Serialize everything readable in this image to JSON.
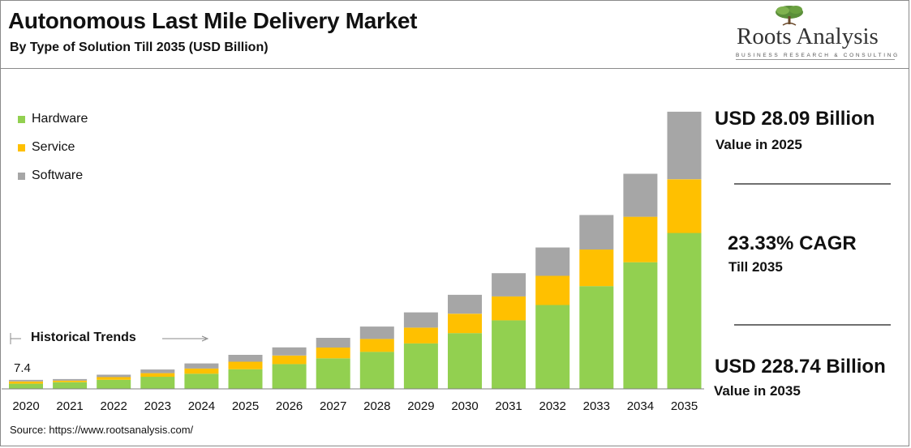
{
  "header": {
    "title": "Autonomous Last Mile Delivery Market",
    "subtitle": "By Type of Solution Till 2035 (USD Billion)"
  },
  "logo": {
    "name": "Roots Analysis",
    "tagline": "BUSINESS RESEARCH & CONSULTING",
    "icon": "tree-icon"
  },
  "annotations": {
    "historical_label": "Historical Trends",
    "first_value_label": "7.4"
  },
  "kpis": {
    "value_2025": "USD 28.09 Billion",
    "value_2025_caption": "Value in 2025",
    "cagr": "23.33% CAGR",
    "cagr_caption": "Till 2035",
    "value_2035": "USD 228.74 Billion",
    "value_2035_caption": "Value in 2035"
  },
  "source": "Source: https://www.rootsanalysis.com/",
  "colors": {
    "hardware": "#92d050",
    "service": "#ffc000",
    "software": "#a6a6a6",
    "rule": "#707070"
  },
  "chart_data": {
    "type": "bar",
    "stacked": true,
    "categories": [
      "2020",
      "2021",
      "2022",
      "2023",
      "2024",
      "2025",
      "2026",
      "2027",
      "2028",
      "2029",
      "2030",
      "2031",
      "2032",
      "2033",
      "2034",
      "2035"
    ],
    "series": [
      {
        "name": "Hardware",
        "values": [
          4.3,
          5.5,
          7.5,
          10.0,
          12.5,
          16.2,
          20.5,
          25.2,
          30.6,
          37.5,
          46.0,
          56.6,
          69.2,
          84.8,
          104.5,
          128.7
        ]
      },
      {
        "name": "Service",
        "values": [
          1.8,
          1.3,
          2.2,
          3.0,
          4.3,
          6.2,
          7.0,
          8.9,
          10.6,
          13.0,
          16.0,
          19.7,
          24.1,
          30.2,
          37.5,
          44.3
        ]
      },
      {
        "name": "Software",
        "values": [
          1.3,
          1.3,
          2.0,
          3.0,
          4.2,
          5.7,
          6.7,
          8.0,
          10.2,
          12.6,
          15.6,
          19.2,
          23.4,
          28.5,
          35.5,
          55.7
        ]
      }
    ],
    "legend": "top-left",
    "grid": false,
    "ylim": [
      0,
      230
    ]
  }
}
